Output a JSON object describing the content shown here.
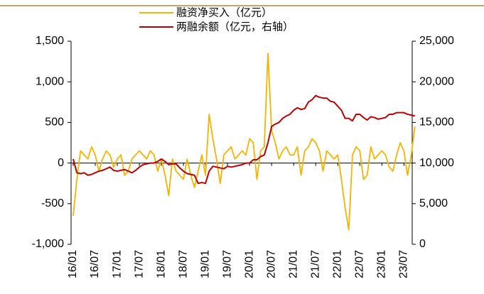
{
  "chart_data": {
    "type": "line",
    "categories": [
      "16/01",
      null,
      null,
      null,
      null,
      null,
      "16/07",
      null,
      null,
      null,
      null,
      null,
      "17/01",
      null,
      null,
      null,
      null,
      null,
      "17/07",
      null,
      null,
      null,
      null,
      null,
      "18/01",
      null,
      null,
      null,
      null,
      null,
      "18/07",
      null,
      null,
      null,
      null,
      null,
      "19/01",
      null,
      null,
      null,
      null,
      null,
      "19/07",
      null,
      null,
      null,
      null,
      null,
      "20/01",
      null,
      null,
      null,
      null,
      null,
      "20/07",
      null,
      null,
      null,
      null,
      null,
      "21/01",
      null,
      null,
      null,
      null,
      null,
      "21/07",
      null,
      null,
      null,
      null,
      null,
      "22/01",
      null,
      null,
      null,
      null,
      null,
      "22/07",
      null,
      null,
      null,
      null,
      null,
      "23/01",
      null,
      null,
      null,
      null,
      null,
      "23/07",
      null,
      null,
      null
    ],
    "series": [
      {
        "name": "融资净买入（亿元）",
        "color": "#f5b400",
        "values": [
          -650,
          -200,
          150,
          100,
          50,
          200,
          100,
          -100,
          50,
          150,
          100,
          -50,
          50,
          100,
          -150,
          -100,
          50,
          100,
          150,
          100,
          50,
          150,
          100,
          -100,
          50,
          -150,
          -400,
          50,
          -100,
          -150,
          -200,
          50,
          -150,
          -300,
          -100,
          100,
          -150,
          600,
          300,
          50,
          -250,
          100,
          150,
          200,
          50,
          100,
          150,
          100,
          300,
          250,
          -200,
          150,
          200,
          1350,
          400,
          250,
          50,
          150,
          200,
          100,
          100,
          200,
          -150,
          150,
          200,
          300,
          250,
          150,
          -100,
          150,
          100,
          50,
          100,
          -200,
          -550,
          -820,
          100,
          200,
          150,
          -200,
          -150,
          200,
          50,
          100,
          150,
          100,
          -50,
          -100,
          100,
          250,
          150,
          -150,
          100,
          450
        ]
      },
      {
        "name": "两融余额（亿元，右轴）",
        "color": "#c00000",
        "axis": "y2",
        "values": [
          10500,
          8800,
          8700,
          8800,
          8500,
          8600,
          8800,
          9000,
          9100,
          9300,
          9500,
          9100,
          9000,
          9100,
          9200,
          9000,
          8800,
          9100,
          9500,
          9800,
          9900,
          10000,
          10000,
          10200,
          10500,
          10200,
          9800,
          9900,
          9900,
          9400,
          9000,
          8700,
          8600,
          8500,
          7500,
          7600,
          7500,
          9000,
          9600,
          9500,
          9400,
          9300,
          9600,
          9500,
          9600,
          9700,
          9800,
          10000,
          10000,
          10400,
          10400,
          10800,
          11000,
          12500,
          14500,
          14800,
          15000,
          15500,
          15800,
          16000,
          16500,
          16800,
          16600,
          16700,
          17500,
          17800,
          18300,
          18100,
          18000,
          18000,
          17600,
          17500,
          17000,
          16500,
          15500,
          15500,
          15200,
          16000,
          16000,
          15600,
          15300,
          15700,
          15600,
          15400,
          15500,
          15600,
          16000,
          16000,
          16200,
          16200,
          16200,
          16000,
          15900,
          15800
        ]
      }
    ],
    "ylim": [
      -1000,
      1500
    ],
    "yticks": [
      {
        "value": -1000,
        "label": "-1,000"
      },
      -500,
      0,
      500,
      {
        "value": 1000,
        "label": "1,000"
      },
      {
        "value": 1500,
        "label": "1,500"
      }
    ],
    "y2lim": [
      0,
      25000
    ],
    "y2ticks": [
      0,
      {
        "value": 5000,
        "label": "5,000"
      },
      {
        "value": 10000,
        "label": "10,000"
      },
      {
        "value": 15000,
        "label": "15,000"
      },
      {
        "value": 20000,
        "label": "20,000"
      },
      {
        "value": 25000,
        "label": "25,000"
      }
    ]
  }
}
